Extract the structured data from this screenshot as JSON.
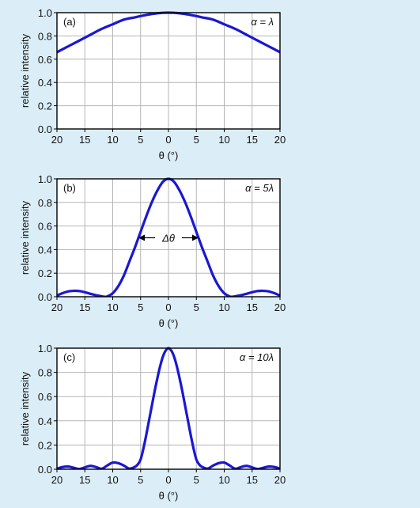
{
  "colors": {
    "background": "#dbeef8",
    "plot_background": "#ffffff",
    "curve": "#1a17d4",
    "grid": "#b5b5b5",
    "axis": "#000000"
  },
  "chart_data": [
    {
      "type": "line",
      "panel_label": "(a)",
      "alpha_label": "α = λ",
      "xlabel": "θ (°)",
      "ylabel": "relative intensity",
      "xlim": [
        -20,
        20
      ],
      "ylim": [
        0,
        1
      ],
      "x_ticks": [
        -20,
        -15,
        -10,
        -5,
        0,
        5,
        10,
        15,
        20
      ],
      "x_tick_labels": [
        "20",
        "15",
        "10",
        "5",
        "0",
        "5",
        "10",
        "15",
        "20"
      ],
      "y_ticks": [
        0,
        0.2,
        0.4,
        0.6,
        0.8,
        1.0
      ],
      "y_tick_labels": [
        "0.0",
        "0.2",
        "0.4",
        "0.6",
        "0.8",
        "1.0"
      ],
      "grid": true,
      "annotation": "",
      "x": [
        -20,
        -18,
        -16,
        -14,
        -12,
        -10,
        -8,
        -6,
        -4,
        -2,
        0,
        2,
        4,
        6,
        8,
        10,
        12,
        14,
        16,
        18,
        20
      ],
      "y": [
        0.66,
        0.71,
        0.76,
        0.81,
        0.86,
        0.9,
        0.94,
        0.96,
        0.98,
        0.995,
        1.0,
        0.995,
        0.98,
        0.96,
        0.94,
        0.9,
        0.86,
        0.81,
        0.76,
        0.71,
        0.66
      ]
    },
    {
      "type": "line",
      "panel_label": "(b)",
      "alpha_label": "α = 5λ",
      "xlabel": "θ (°)",
      "ylabel": "relative intensity",
      "xlim": [
        -20,
        20
      ],
      "ylim": [
        0,
        1
      ],
      "x_ticks": [
        -20,
        -15,
        -10,
        -5,
        0,
        5,
        10,
        15,
        20
      ],
      "x_tick_labels": [
        "20",
        "15",
        "10",
        "5",
        "0",
        "5",
        "10",
        "15",
        "20"
      ],
      "y_ticks": [
        0,
        0.2,
        0.4,
        0.6,
        0.8,
        1.0
      ],
      "y_tick_labels": [
        "0.0",
        "0.2",
        "0.4",
        "0.6",
        "0.8",
        "1.0"
      ],
      "grid": true,
      "annotation": "Δθ",
      "annotation_y": 0.5,
      "x": [
        -20,
        -19,
        -18,
        -17,
        -16,
        -15,
        -14,
        -13,
        -12,
        -11.5,
        -11,
        -10,
        -9,
        -8,
        -7,
        -6,
        -5,
        -4,
        -3,
        -2,
        -1,
        0,
        1,
        2,
        3,
        4,
        5,
        6,
        7,
        8,
        9,
        10,
        11,
        11.5,
        12,
        13,
        14,
        15,
        16,
        17,
        18,
        19,
        20
      ],
      "y": [
        0.01,
        0.03,
        0.045,
        0.05,
        0.048,
        0.038,
        0.025,
        0.013,
        0.004,
        0.0,
        0.002,
        0.03,
        0.09,
        0.18,
        0.3,
        0.42,
        0.55,
        0.68,
        0.8,
        0.9,
        0.975,
        1.0,
        0.975,
        0.9,
        0.8,
        0.68,
        0.55,
        0.42,
        0.3,
        0.18,
        0.09,
        0.03,
        0.002,
        0.0,
        0.004,
        0.013,
        0.025,
        0.038,
        0.048,
        0.05,
        0.045,
        0.03,
        0.01
      ]
    },
    {
      "type": "line",
      "panel_label": "(c)",
      "alpha_label": "α = 10λ",
      "xlabel": "θ (°)",
      "ylabel": "relative intensity",
      "xlim": [
        -20,
        20
      ],
      "ylim": [
        0,
        1
      ],
      "x_ticks": [
        -20,
        -15,
        -10,
        -5,
        0,
        5,
        10,
        15,
        20
      ],
      "x_tick_labels": [
        "20",
        "15",
        "10",
        "5",
        "0",
        "5",
        "10",
        "15",
        "20"
      ],
      "y_ticks": [
        0,
        0.2,
        0.4,
        0.6,
        0.8,
        1.0
      ],
      "y_tick_labels": [
        "0.0",
        "0.2",
        "0.4",
        "0.6",
        "0.8",
        "1.0"
      ],
      "grid": true,
      "annotation": "",
      "x": [
        -20,
        -19,
        -18,
        -17,
        -16,
        -15,
        -14,
        -13,
        -12,
        -11,
        -10,
        -9,
        -8,
        -7,
        -6,
        -5.5,
        -5,
        -4.5,
        -4,
        -3.5,
        -3,
        -2.5,
        -2,
        -1.5,
        -1,
        -0.5,
        0,
        0.5,
        1,
        1.5,
        2,
        2.5,
        3,
        3.5,
        4,
        4.5,
        5,
        5.5,
        6,
        7,
        8,
        9,
        10,
        11,
        12,
        13,
        14,
        15,
        16,
        17,
        18,
        19,
        20
      ],
      "y": [
        0.005,
        0.018,
        0.022,
        0.012,
        0.002,
        0.015,
        0.028,
        0.018,
        0.004,
        0.03,
        0.055,
        0.05,
        0.03,
        0.005,
        0.02,
        0.04,
        0.08,
        0.17,
        0.28,
        0.4,
        0.52,
        0.64,
        0.75,
        0.85,
        0.93,
        0.98,
        1.0,
        0.98,
        0.93,
        0.85,
        0.75,
        0.64,
        0.52,
        0.4,
        0.28,
        0.17,
        0.08,
        0.04,
        0.02,
        0.005,
        0.03,
        0.05,
        0.055,
        0.03,
        0.004,
        0.018,
        0.028,
        0.015,
        0.002,
        0.012,
        0.022,
        0.018,
        0.005
      ]
    }
  ]
}
